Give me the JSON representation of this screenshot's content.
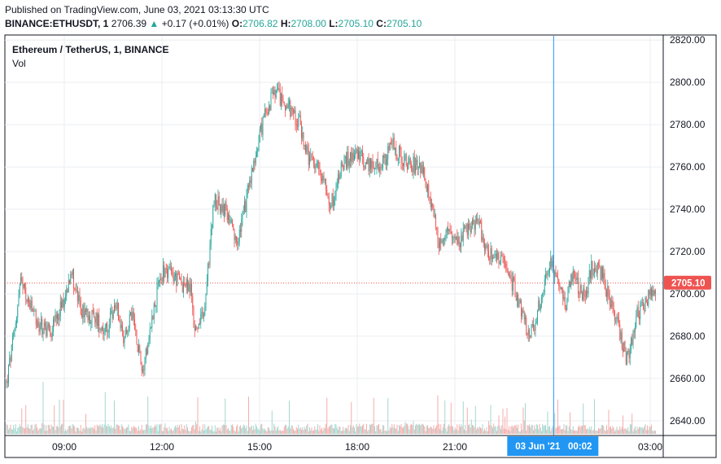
{
  "header": {
    "published": "Published on TradingView.com, June 03, 2021 03:13:30 UTC",
    "symbol": "BINANCE:ETHUSDT, 1",
    "last": "2706.39",
    "change_arrow": "▲",
    "change": "+0.17 (+0.01%)",
    "o_label": "O:",
    "o_value": "2706.82",
    "h_label": "H:",
    "h_value": "2708.00",
    "l_label": "L:",
    "l_value": "2705.10",
    "c_label": "C:",
    "c_value": "2705.10"
  },
  "legend": {
    "title": "Ethereum / TetherUS, 1, BINANCE",
    "volume": "Vol"
  },
  "colors": {
    "up": "#26a69a",
    "down": "#ef5350",
    "crosshair": "#2196f3",
    "price_tag": "#ef5350",
    "date_tag": "#2196f3"
  },
  "chart_data": {
    "type": "candlestick",
    "title": "Ethereum / TetherUS, 1, BINANCE",
    "x_ticks": [
      "09:00",
      "12:00",
      "15:00",
      "18:00",
      "21:00",
      "03:00"
    ],
    "y_ticks": [
      "2820.00",
      "2800.00",
      "2780.00",
      "2760.00",
      "2740.00",
      "2720.00",
      "2700.00",
      "2680.00",
      "2660.00",
      "2640.00"
    ],
    "ylim": [
      2633,
      2822
    ],
    "last_price": 2705.1,
    "last_price_label": "2705.10",
    "crosshair_date_label": "03 Jun '21   00:02",
    "grid": true,
    "close_path_hours": [
      7.2,
      7.45,
      7.65,
      8.2,
      8.6,
      9.05,
      9.2,
      9.5,
      10.0,
      10.3,
      10.6,
      10.8,
      11.1,
      11.4,
      11.9,
      12.1,
      12.5,
      12.9,
      13.0,
      13.3,
      13.6,
      14.0,
      14.3,
      14.6,
      15.0,
      15.2,
      15.5,
      15.9,
      16.2,
      16.5,
      16.9,
      17.2,
      17.5,
      18.0,
      18.2,
      18.7,
      19.1,
      19.5,
      20.0,
      20.5,
      20.9,
      21.1,
      21.7,
      22.0,
      22.5,
      22.9,
      23.3,
      23.6,
      23.9,
      24.1,
      24.4,
      24.6,
      25.0,
      25.2,
      25.5,
      25.7,
      26.0,
      26.3,
      26.6,
      27.2
    ],
    "close_path_prices": [
      2655,
      2680,
      2705,
      2685,
      2683,
      2700,
      2712,
      2692,
      2688,
      2682,
      2696,
      2680,
      2690,
      2664,
      2705,
      2712,
      2706,
      2702,
      2682,
      2690,
      2745,
      2738,
      2722,
      2745,
      2775,
      2787,
      2795,
      2788,
      2782,
      2763,
      2758,
      2742,
      2760,
      2768,
      2762,
      2760,
      2770,
      2762,
      2760,
      2725,
      2730,
      2725,
      2735,
      2720,
      2715,
      2700,
      2678,
      2695,
      2715,
      2710,
      2695,
      2708,
      2698,
      2712,
      2710,
      2700,
      2685,
      2668,
      2690,
      2705
    ],
    "volume_range": [
      0,
      160
    ]
  }
}
